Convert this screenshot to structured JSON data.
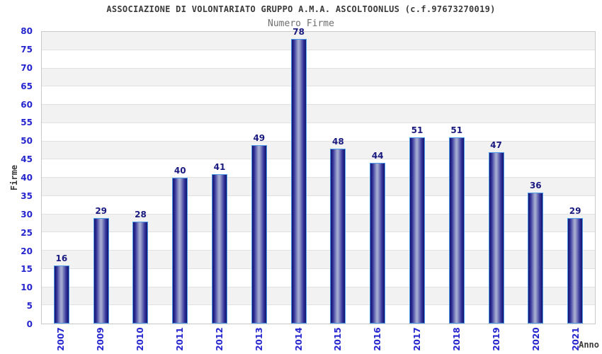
{
  "header": {
    "title": "ASSOCIAZIONE DI VOLONTARIATO GRUPPO A.M.A. ASCOLTOONLUS (c.f.97673270019)",
    "subtitle": "Numero Firme"
  },
  "chart_data": {
    "type": "bar",
    "title": "Numero Firme",
    "categories": [
      "2007",
      "2009",
      "2010",
      "2011",
      "2012",
      "2013",
      "2014",
      "2015",
      "2016",
      "2017",
      "2018",
      "2019",
      "2020",
      "2021"
    ],
    "values": [
      16,
      29,
      28,
      40,
      41,
      49,
      78,
      48,
      44,
      51,
      51,
      47,
      36,
      29
    ],
    "xlabel": "Anno",
    "ylabel": "Firme",
    "ylim": [
      0,
      80
    ],
    "ytick_step": 5,
    "grid": true,
    "bar_value_labels_shown": true,
    "legend": "none",
    "colors": {
      "bar_dark": "#12126e",
      "bar_mid": "#34349a",
      "bar_light": "#a2a8cf",
      "bar_edge": "#4d9be6",
      "tick_label": "#2525cf",
      "value_label": "#1a1a80",
      "stripe": "#f2f2f2",
      "gridline": "#e1e1e1",
      "axis_label": "#3a3a3a",
      "title": "#3a3a3a",
      "subtitle": "#6f6f6f"
    }
  }
}
